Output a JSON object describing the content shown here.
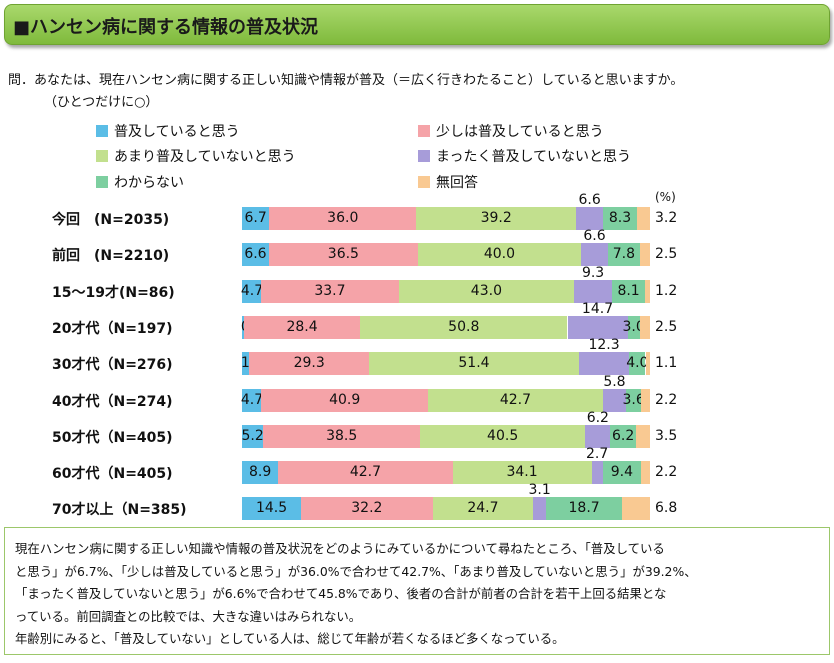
{
  "title": "■ハンセン病に関する情報の普及状況",
  "question_line1": "問．あなたは、現在ハンセン病に関する正しい知識や情報が普及（＝広く行きわたること）していると思いますか。",
  "question_line2": "（ひとつだけに○）",
  "unit_label": "(%)",
  "colors": {
    "s1": "#5bbde6",
    "s2": "#f5a3a8",
    "s3": "#c2e08e",
    "s4": "#a79cd9",
    "s5": "#7dcfa0",
    "s6": "#f9c992"
  },
  "chart_data": {
    "type": "bar",
    "orientation": "horizontal-stacked-100",
    "xlim": [
      0,
      100
    ],
    "categories": [
      "今回　(N=2035)",
      "前回　(N=2210)",
      "15〜19才(N=86)",
      "20才代（N=197)",
      "30才代（N=276)",
      "40才代（N=274)",
      "50才代（N=405)",
      "60才代（N=405)",
      "70才以上（N=385)"
    ],
    "series": [
      {
        "name": "普及していると思う",
        "values": [
          6.7,
          6.6,
          4.7,
          0.5,
          1.8,
          4.7,
          5.2,
          8.9,
          14.5
        ]
      },
      {
        "name": "少しは普及していると思う",
        "values": [
          36.0,
          36.5,
          33.7,
          28.4,
          29.3,
          40.9,
          38.5,
          42.7,
          32.2
        ]
      },
      {
        "name": "あまり普及していないと思う",
        "values": [
          39.2,
          40.0,
          43.0,
          50.8,
          51.4,
          42.7,
          40.5,
          34.1,
          24.7
        ]
      },
      {
        "name": "まったく普及していないと思う",
        "values": [
          6.6,
          6.6,
          9.3,
          14.7,
          12.3,
          5.8,
          6.2,
          2.7,
          3.1
        ]
      },
      {
        "name": "わからない",
        "values": [
          8.3,
          7.8,
          8.1,
          3.0,
          4.0,
          3.6,
          6.2,
          9.4,
          18.7
        ]
      },
      {
        "name": "無回答",
        "values": [
          3.2,
          2.5,
          1.2,
          2.5,
          1.1,
          2.2,
          3.5,
          2.2,
          6.8
        ]
      }
    ]
  },
  "note_lines": [
    "現在ハンセン病に関する正しい知識や情報の普及状況をどのようにみているかについて尋ねたところ、「普及している",
    "と思う」が6.7%、「少しは普及していると思う」が36.0%で合わせて42.7%、「あまり普及していないと思う」が39.2%、",
    "「まったく普及していないと思う」が6.6%で合わせて45.8%であり、後者の合計が前者の合計を若干上回る結果とな",
    "っている。前回調査との比較では、大きな違いはみられない。",
    "年齢別にみると、「普及していない」としている人は、総じて年齢が若くなるほど多くなっている。"
  ]
}
